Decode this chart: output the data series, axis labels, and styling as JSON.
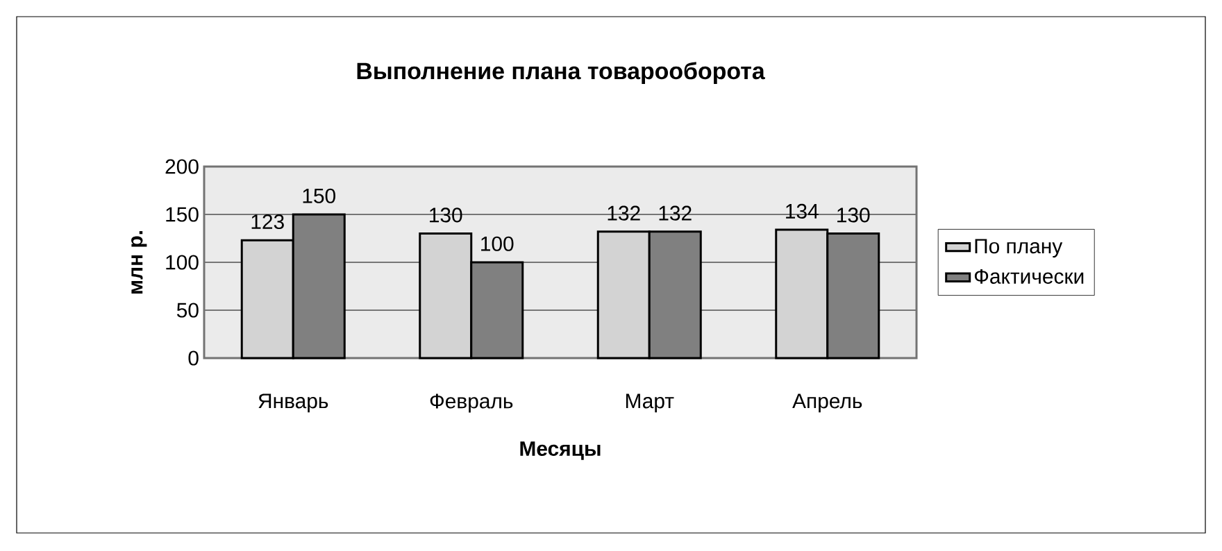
{
  "chart_data": {
    "type": "bar",
    "title": "Выполнение плана товарооборота",
    "xlabel": "Месяцы",
    "ylabel": "млн р.",
    "categories": [
      "Январь",
      "Февраль",
      "Март",
      "Апрель"
    ],
    "series": [
      {
        "name": "По плану",
        "color": "#d3d3d3",
        "values": [
          123,
          130,
          132,
          134
        ]
      },
      {
        "name": "Фактически",
        "color": "#808080",
        "values": [
          150,
          100,
          132,
          130
        ]
      }
    ],
    "ylim": [
      0,
      200
    ],
    "yticks": [
      0,
      50,
      100,
      150,
      200
    ],
    "grid": "y",
    "legend": "right",
    "data_labels": true
  }
}
